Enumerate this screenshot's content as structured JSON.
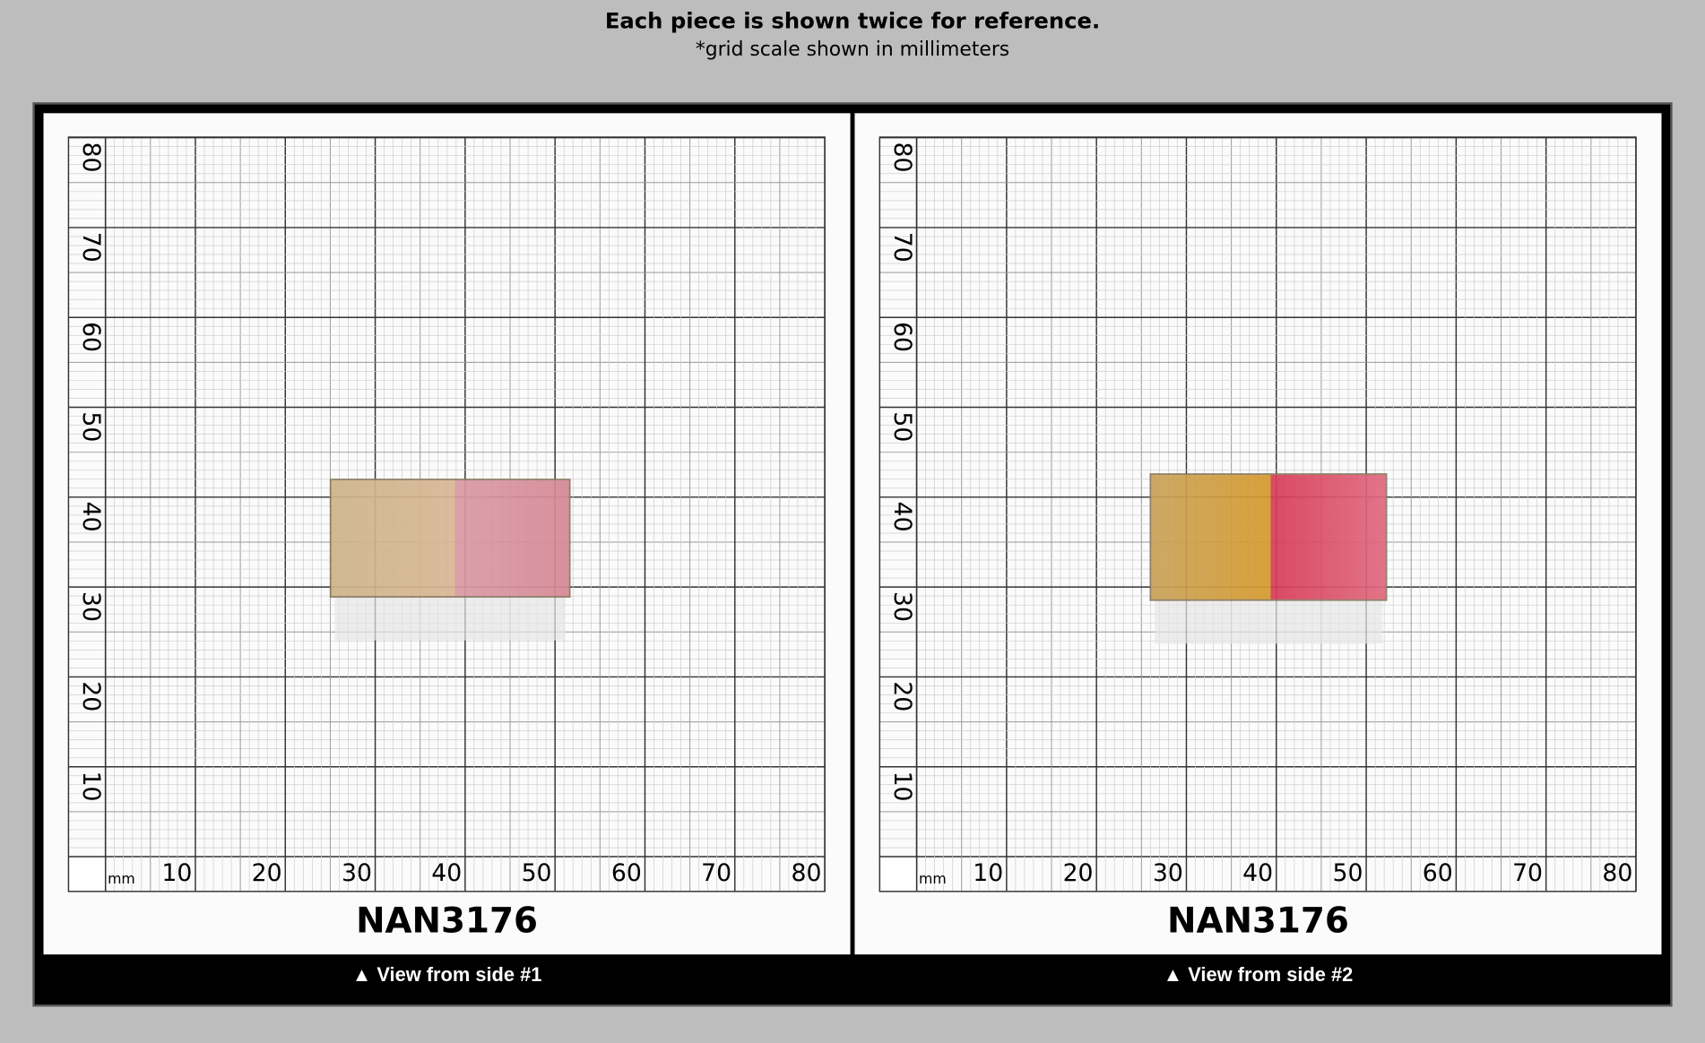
{
  "header": {
    "title": "Each piece is shown twice for reference.",
    "subtitle": "*grid scale shown in millimeters"
  },
  "panels": [
    {
      "unit": "mm",
      "x_labels": [
        10,
        20,
        30,
        40,
        50,
        60,
        70,
        80
      ],
      "y_labels": [
        10,
        20,
        30,
        40,
        50,
        60,
        70,
        80
      ],
      "code": "NAN3176",
      "caption": "▲ View from side #1"
    },
    {
      "unit": "mm",
      "x_labels": [
        10,
        20,
        30,
        40,
        50,
        60,
        70,
        80
      ],
      "y_labels": [
        10,
        20,
        30,
        40,
        50,
        60,
        70,
        80
      ],
      "code": "NAN3176",
      "caption": "▲ View from side #2"
    }
  ]
}
